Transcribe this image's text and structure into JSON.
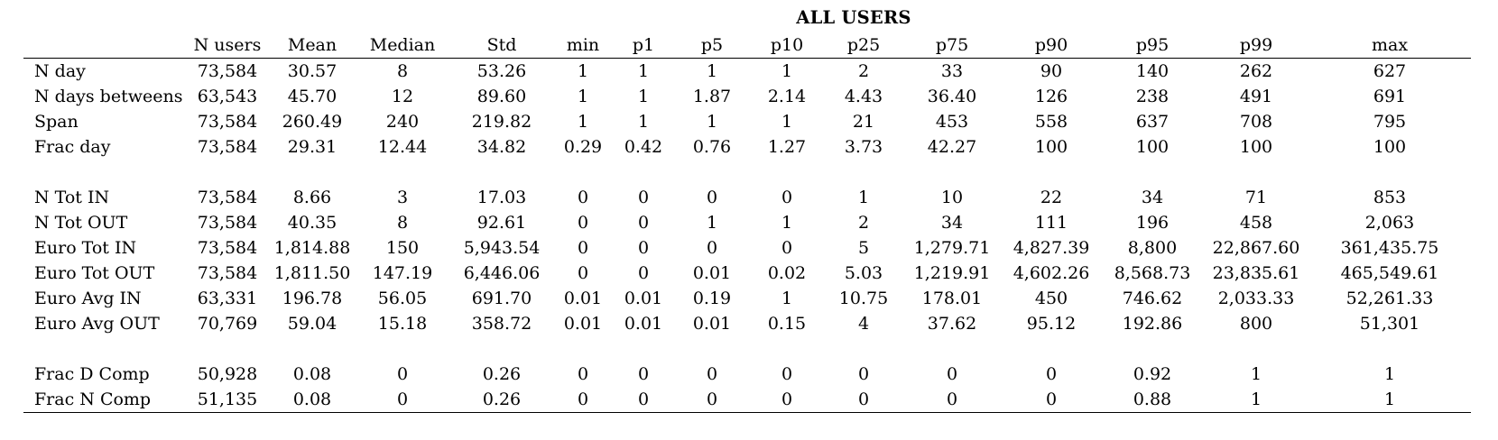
{
  "title": "ALL USERS",
  "columns": [
    "",
    "N users",
    "Mean",
    "Median",
    "Std",
    "min",
    "p1",
    "p5",
    "p10",
    "p25",
    "p75",
    "p90",
    "p95",
    "p99",
    "max"
  ],
  "rows": [
    [
      "N day",
      "73,584",
      "30.57",
      "8",
      "53.26",
      "1",
      "1",
      "1",
      "1",
      "2",
      "33",
      "90",
      "140",
      "262",
      "627"
    ],
    [
      "N days betweens",
      "63,543",
      "45.70",
      "12",
      "89.60",
      "1",
      "1",
      "1.87",
      "2.14",
      "4.43",
      "36.40",
      "126",
      "238",
      "491",
      "691"
    ],
    [
      "Span",
      "73,584",
      "260.49",
      "240",
      "219.82",
      "1",
      "1",
      "1",
      "1",
      "21",
      "453",
      "558",
      "637",
      "708",
      "795"
    ],
    [
      "Frac day",
      "73,584",
      "29.31",
      "12.44",
      "34.82",
      "0.29",
      "0.42",
      "0.76",
      "1.27",
      "3.73",
      "42.27",
      "100",
      "100",
      "100",
      "100"
    ],
    [
      "N Tot IN",
      "73,584",
      "8.66",
      "3",
      "17.03",
      "0",
      "0",
      "0",
      "0",
      "1",
      "10",
      "22",
      "34",
      "71",
      "853"
    ],
    [
      "N Tot OUT",
      "73,584",
      "40.35",
      "8",
      "92.61",
      "0",
      "0",
      "1",
      "1",
      "2",
      "34",
      "111",
      "196",
      "458",
      "2,063"
    ],
    [
      "Euro Tot IN",
      "73,584",
      "1,814.88",
      "150",
      "5,943.54",
      "0",
      "0",
      "0",
      "0",
      "5",
      "1,279.71",
      "4,827.39",
      "8,800",
      "22,867.60",
      "361,435.75"
    ],
    [
      "Euro Tot OUT",
      "73,584",
      "1,811.50",
      "147.19",
      "6,446.06",
      "0",
      "0",
      "0.01",
      "0.02",
      "5.03",
      "1,219.91",
      "4,602.26",
      "8,568.73",
      "23,835.61",
      "465,549.61"
    ],
    [
      "Euro Avg IN",
      "63,331",
      "196.78",
      "56.05",
      "691.70",
      "0.01",
      "0.01",
      "0.19",
      "1",
      "10.75",
      "178.01",
      "450",
      "746.62",
      "2,033.33",
      "52,261.33"
    ],
    [
      "Euro Avg OUT",
      "70,769",
      "59.04",
      "15.18",
      "358.72",
      "0.01",
      "0.01",
      "0.01",
      "0.15",
      "4",
      "37.62",
      "95.12",
      "192.86",
      "800",
      "51,301"
    ],
    [
      "Frac D Comp",
      "50,928",
      "0.08",
      "0",
      "0.26",
      "0",
      "0",
      "0",
      "0",
      "0",
      "0",
      "0",
      "0.92",
      "1",
      "1"
    ],
    [
      "Frac N Comp",
      "51,135",
      "0.08",
      "0",
      "0.26",
      "0",
      "0",
      "0",
      "0",
      "0",
      "0",
      "0",
      "0.88",
      "1",
      "1"
    ]
  ]
}
